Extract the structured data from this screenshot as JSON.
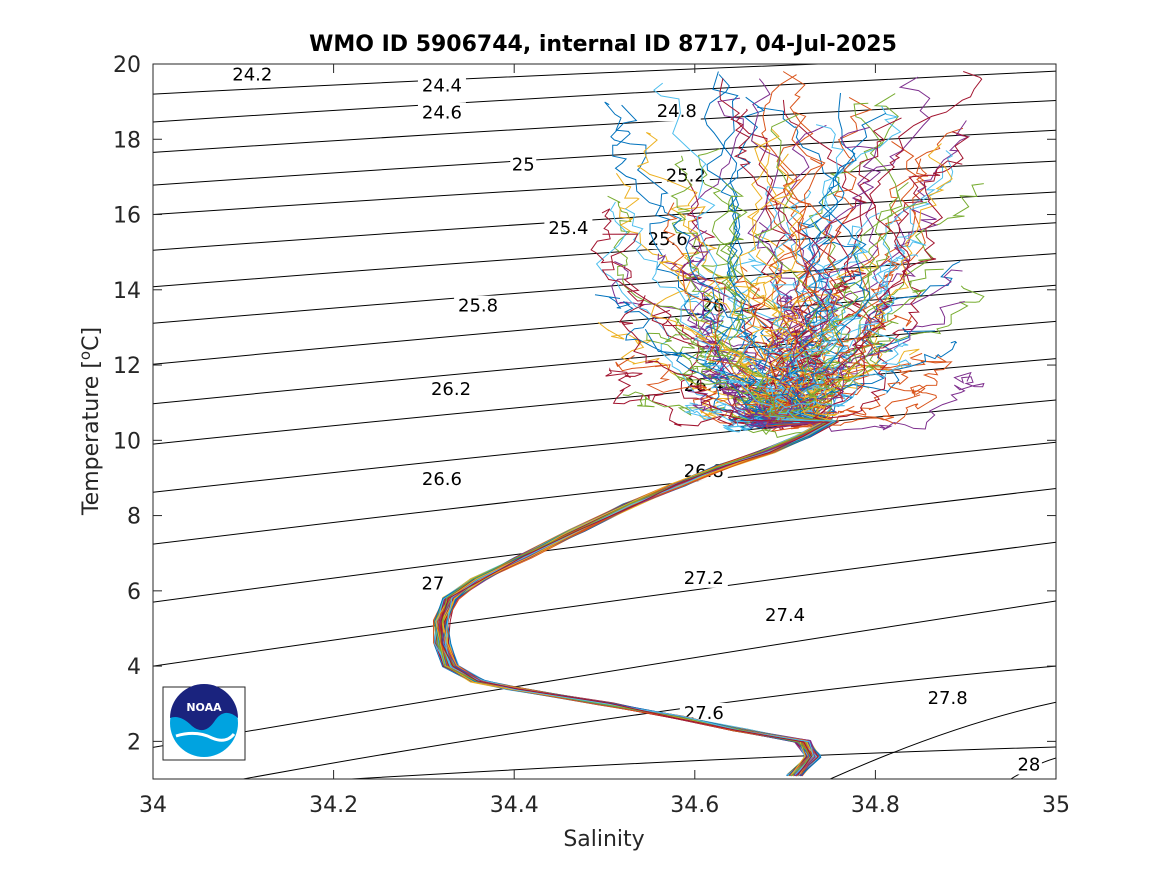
{
  "chart_data": {
    "type": "line",
    "title": "WMO ID 5906744, internal ID 8717, 04-Jul-2025",
    "xlabel": "Salinity",
    "ylabel": "Temperature [",
    "ylabel_sup": "o",
    "ylabel_suffix": "C]",
    "xlim": [
      34,
      35
    ],
    "ylim": [
      1,
      20
    ],
    "xticks": [
      34,
      34.2,
      34.4,
      34.6,
      34.8,
      35
    ],
    "xtick_labels": [
      "34",
      "34.2",
      "34.4",
      "34.6",
      "34.8",
      "35"
    ],
    "yticks": [
      2,
      4,
      6,
      8,
      10,
      12,
      14,
      16,
      18,
      20
    ],
    "ytick_labels": [
      "2",
      "4",
      "6",
      "8",
      "10",
      "12",
      "14",
      "16",
      "18",
      "20"
    ],
    "grid": false,
    "density_contours": [
      {
        "sigma": 24.2,
        "label": "24.2",
        "t_at_s34": 19.2,
        "t_at_s35": 20.23,
        "label_at": [
          34.11,
          19.61
        ]
      },
      {
        "sigma": 24.4,
        "label": "24.4",
        "t_at_s34": 18.46,
        "t_at_s35": 19.81,
        "label_at": [
          34.32,
          19.32
        ]
      },
      {
        "sigma": 24.6,
        "label": "24.6",
        "t_at_s34": 17.65,
        "t_at_s35": 19.03,
        "label_at": [
          34.32,
          18.61
        ]
      },
      {
        "sigma": 24.8,
        "label": "24.8",
        "t_at_s34": 16.78,
        "t_at_s35": 18.24,
        "label_at": [
          34.58,
          18.64
        ]
      },
      {
        "sigma": 25.0,
        "label": "25",
        "t_at_s34": 16.0,
        "t_at_s35": 17.42,
        "label_at": [
          34.41,
          17.22
        ]
      },
      {
        "sigma": 25.2,
        "label": "25.2",
        "t_at_s34": 15.05,
        "t_at_s35": 16.6,
        "label_at": [
          34.59,
          16.93
        ]
      },
      {
        "sigma": 25.4,
        "label": "25.4",
        "t_at_s34": 14.08,
        "t_at_s35": 15.78,
        "label_at": [
          34.46,
          15.54
        ]
      },
      {
        "sigma": 25.6,
        "label": "25.6",
        "t_at_s34": 13.11,
        "t_at_s35": 14.96,
        "label_at": [
          34.57,
          15.24
        ]
      },
      {
        "sigma": 25.8,
        "label": "25.8",
        "t_at_s34": 12.02,
        "t_at_s35": 14.12,
        "label_at": [
          34.36,
          13.47
        ]
      },
      {
        "sigma": 26.0,
        "label": "26",
        "t_at_s34": 10.97,
        "t_at_s35": 13.16,
        "label_at": [
          34.62,
          13.48
        ]
      },
      {
        "sigma": 26.2,
        "label": "26.2",
        "t_at_s34": 9.9,
        "t_at_s35": 12.17,
        "label_at": [
          34.33,
          11.26
        ]
      },
      {
        "sigma": 26.4,
        "label": "26.4",
        "t_at_s34": 8.62,
        "t_at_s35": 11.07,
        "label_at": [
          34.61,
          11.37
        ]
      },
      {
        "sigma": 26.6,
        "label": "26.6",
        "t_at_s34": 7.24,
        "t_at_s35": 9.95,
        "label_at": [
          34.32,
          8.87
        ]
      },
      {
        "sigma": 26.8,
        "label": "26.8",
        "t_at_s34": 5.7,
        "t_at_s35": 8.72,
        "label_at": [
          34.61,
          9.08
        ]
      },
      {
        "sigma": 27.0,
        "label": "27",
        "t_at_s34": 4.0,
        "t_at_s35": 7.29,
        "label_at": [
          34.31,
          6.09
        ]
      },
      {
        "sigma": 27.2,
        "label": "27.2",
        "t_at_s34": 1.84,
        "t_at_s35": 5.73,
        "label_at": [
          34.61,
          6.24
        ]
      },
      {
        "sigma": 27.4,
        "label": "27.4",
        "t_at_s34": null,
        "s_at_t1": 34.1,
        "t_at_s35": 4.0,
        "label_at": [
          34.7,
          5.25
        ]
      },
      {
        "sigma": 27.6,
        "label": "27.6",
        "t_at_s34": null,
        "s_at_t1": 34.22,
        "t_at_s35": 1.85,
        "label_at": [
          34.61,
          2.65
        ]
      },
      {
        "sigma": 27.8,
        "label": "27.8",
        "t_at_s34": null,
        "s_at_t1": 34.75,
        "t_at_s35": 3.04,
        "label_at": [
          34.88,
          3.04
        ]
      },
      {
        "sigma": 28.0,
        "label": "28",
        "t_at_s34": null,
        "s_at_t1": 34.95,
        "t_at_s35": 1.56,
        "label_at": [
          34.97,
          1.28
        ]
      }
    ],
    "profile_envelope": {
      "description_values": "mean T-S path of profiles (salinity, temperature)",
      "points": [
        [
          34.71,
          1.1
        ],
        [
          34.73,
          1.6
        ],
        [
          34.72,
          2.0
        ],
        [
          34.65,
          2.3
        ],
        [
          34.58,
          2.65
        ],
        [
          34.5,
          3.0
        ],
        [
          34.4,
          3.4
        ],
        [
          34.36,
          3.6
        ],
        [
          34.33,
          4.0
        ],
        [
          34.32,
          4.6
        ],
        [
          34.32,
          5.2
        ],
        [
          34.33,
          5.8
        ],
        [
          34.36,
          6.3
        ],
        [
          34.41,
          6.9
        ],
        [
          34.47,
          7.6
        ],
        [
          34.53,
          8.3
        ],
        [
          34.58,
          8.8
        ],
        [
          34.63,
          9.3
        ],
        [
          34.68,
          9.7
        ],
        [
          34.72,
          10.1
        ],
        [
          34.75,
          10.5
        ]
      ],
      "upper_spread": {
        "s_min": 34.45,
        "s_max": 34.92,
        "t_min": 9.5,
        "t_max": 19.8
      }
    },
    "series_colors": [
      "#0072bd",
      "#d95319",
      "#edb120",
      "#7e2f8e",
      "#77ac30",
      "#4dbeee",
      "#a2142f"
    ],
    "profile_count": 140
  },
  "logo": {
    "name": "noaa-logo",
    "text": "NOAA",
    "colors": {
      "navy": "#1a237e",
      "sky": "#00a3e0",
      "white": "#ffffff"
    }
  }
}
